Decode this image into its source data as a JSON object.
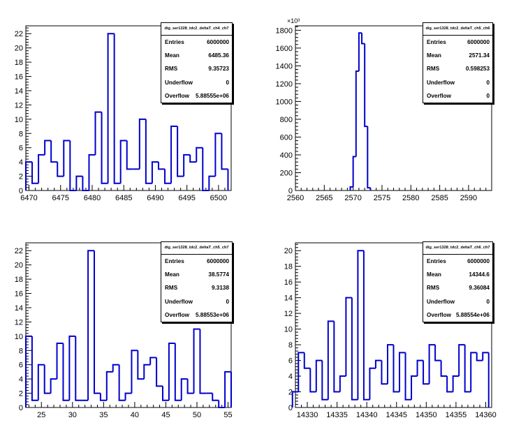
{
  "chart_data": [
    {
      "type": "histogram",
      "title": "dig_ser1328_tdc2_deltaT_ch4_ch7",
      "x": [
        6470,
        6471,
        6472,
        6473,
        6474,
        6475,
        6476,
        6477,
        6478,
        6479,
        6480,
        6481,
        6482,
        6483,
        6484,
        6485,
        6486,
        6487,
        6488,
        6489,
        6490,
        6491,
        6492,
        6493,
        6494,
        6495,
        6496,
        6497,
        6498,
        6499,
        6500,
        6501
      ],
      "values": [
        4,
        1,
        5,
        7,
        4,
        2,
        7,
        0,
        2,
        0,
        5,
        11,
        1,
        22,
        1,
        7,
        3,
        3,
        10,
        1,
        4,
        3,
        1,
        9,
        2,
        5,
        4,
        6,
        0,
        2,
        8,
        3
      ],
      "xlim": [
        6469.5,
        6502
      ],
      "xticks": [
        6470,
        6475,
        6480,
        6485,
        6490,
        6495,
        6500
      ],
      "ylim": [
        0,
        23.1
      ],
      "yticks": [
        0,
        2,
        4,
        6,
        8,
        10,
        12,
        14,
        16,
        18,
        20,
        22
      ],
      "y_exponent": "",
      "stats": {
        "title": "dig_ser1328_tdc2_deltaT_ch4_ch7",
        "rows": [
          {
            "label": "Entries",
            "value": "6000000"
          },
          {
            "label": "Mean",
            "value": "6485.36"
          },
          {
            "label": "RMS",
            "value": "9.35723"
          },
          {
            "label": "Underflow",
            "value": "0"
          },
          {
            "label": "Overflow",
            "value": "5.88555e+06"
          }
        ]
      }
    },
    {
      "type": "histogram",
      "title": "dig_ser1328_tdc2_deltaT_ch5_ch6",
      "x": [
        2569.75,
        2570.25,
        2570.75,
        2571.25,
        2571.75,
        2572.25,
        2572.75
      ],
      "values": [
        40,
        380,
        1340,
        1770,
        1650,
        720,
        30
      ],
      "xlim": [
        2560,
        2594
      ],
      "xticks": [
        2560,
        2565,
        2570,
        2575,
        2580,
        2585,
        2590
      ],
      "ylim": [
        0,
        1850
      ],
      "yticks": [
        0,
        200,
        400,
        600,
        800,
        1000,
        1200,
        1400,
        1600,
        1800
      ],
      "y_exponent": "×10³",
      "stats": {
        "title": "dig_ser1328_tdc2_deltaT_ch5_ch6",
        "rows": [
          {
            "label": "Entries",
            "value": "6000000"
          },
          {
            "label": "Mean",
            "value": "2571.34"
          },
          {
            "label": "RMS",
            "value": "0.598253"
          },
          {
            "label": "Underflow",
            "value": "0"
          },
          {
            "label": "Overflow",
            "value": "0"
          }
        ]
      }
    },
    {
      "type": "histogram",
      "title": "dig_ser1328_tdc2_deltaT_ch5_ch7",
      "x": [
        23,
        24,
        25,
        26,
        27,
        28,
        29,
        30,
        31,
        32,
        33,
        34,
        35,
        36,
        37,
        38,
        39,
        40,
        41,
        42,
        43,
        44,
        45,
        46,
        47,
        48,
        49,
        50,
        51,
        52,
        53,
        54,
        55
      ],
      "values": [
        10,
        1,
        6,
        2,
        4,
        9,
        1,
        10,
        1,
        1,
        22,
        2,
        1,
        5,
        6,
        1,
        2,
        8,
        4,
        6,
        7,
        3,
        1,
        9,
        1,
        4,
        2,
        11,
        2,
        2,
        1,
        0,
        5
      ],
      "xlim": [
        22.5,
        55.5
      ],
      "xticks": [
        25,
        30,
        35,
        40,
        45,
        50,
        55
      ],
      "ylim": [
        0,
        23.1
      ],
      "yticks": [
        0,
        2,
        4,
        6,
        8,
        10,
        12,
        14,
        16,
        18,
        20,
        22
      ],
      "y_exponent": "",
      "stats": {
        "title": "dig_ser1328_tdc2_deltaT_ch5_ch7",
        "rows": [
          {
            "label": "Entries",
            "value": "6000000"
          },
          {
            "label": "Mean",
            "value": "38.5774"
          },
          {
            "label": "RMS",
            "value": "9.3138"
          },
          {
            "label": "Underflow",
            "value": "0"
          },
          {
            "label": "Overflow",
            "value": "5.88553e+06"
          }
        ]
      }
    },
    {
      "type": "histogram",
      "title": "dig_ser1328_tdc2_deltaT_ch6_ch7",
      "x": [
        14328,
        14329,
        14330,
        14331,
        14332,
        14333,
        14334,
        14335,
        14336,
        14337,
        14338,
        14339,
        14340,
        14341,
        14342,
        14343,
        14344,
        14345,
        14346,
        14347,
        14348,
        14349,
        14350,
        14351,
        14352,
        14353,
        14354,
        14355,
        14356,
        14357,
        14358,
        14359,
        14360
      ],
      "values": [
        2,
        7,
        5,
        2,
        6,
        1,
        11,
        2,
        4,
        14,
        1,
        20,
        1,
        5,
        6,
        3,
        8,
        2,
        7,
        1,
        4,
        6,
        3,
        8,
        6,
        4,
        2,
        4,
        8,
        2,
        7,
        6,
        7
      ],
      "xlim": [
        14328,
        14361
      ],
      "xticks": [
        14330,
        14335,
        14340,
        14345,
        14350,
        14355,
        14360
      ],
      "ylim": [
        0,
        21
      ],
      "yticks": [
        0,
        2,
        4,
        6,
        8,
        10,
        12,
        14,
        16,
        18,
        20
      ],
      "y_exponent": "",
      "stats": {
        "title": "dig_ser1328_tdc2_deltaT_ch6_ch7",
        "rows": [
          {
            "label": "Entries",
            "value": "6000000"
          },
          {
            "label": "Mean",
            "value": "14344.6"
          },
          {
            "label": "RMS",
            "value": "9.36084"
          },
          {
            "label": "Underflow",
            "value": "0"
          },
          {
            "label": "Overflow",
            "value": "5.88554e+06"
          }
        ]
      }
    }
  ]
}
